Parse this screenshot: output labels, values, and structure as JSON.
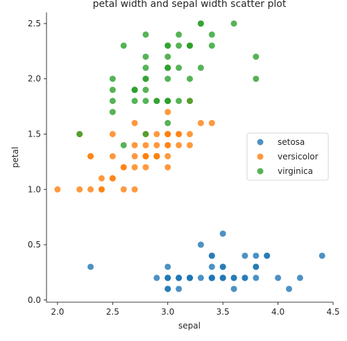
{
  "chart_data": {
    "type": "scatter",
    "title": "petal width and sepal width scatter plot",
    "xlabel": "sepal",
    "ylabel": "petal",
    "xlim": [
      1.9,
      4.5
    ],
    "ylim": [
      -0.02,
      2.6
    ],
    "xticks": [
      "2.0",
      "2.5",
      "3.0",
      "3.5",
      "4.0",
      "4.5"
    ],
    "yticks": [
      "0.0",
      "0.5",
      "1.0",
      "1.5",
      "2.0",
      "2.5"
    ],
    "grid": false,
    "legend_position": "right",
    "series": [
      {
        "name": "setosa",
        "color": "#1f77b4",
        "points": [
          [
            3.5,
            0.2
          ],
          [
            3.0,
            0.2
          ],
          [
            3.2,
            0.2
          ],
          [
            3.1,
            0.2
          ],
          [
            3.6,
            0.2
          ],
          [
            3.9,
            0.4
          ],
          [
            3.4,
            0.3
          ],
          [
            3.4,
            0.2
          ],
          [
            2.9,
            0.2
          ],
          [
            3.1,
            0.1
          ],
          [
            3.7,
            0.2
          ],
          [
            3.4,
            0.2
          ],
          [
            3.0,
            0.1
          ],
          [
            3.0,
            0.1
          ],
          [
            4.0,
            0.2
          ],
          [
            4.4,
            0.4
          ],
          [
            3.9,
            0.4
          ],
          [
            3.5,
            0.3
          ],
          [
            3.8,
            0.3
          ],
          [
            3.8,
            0.3
          ],
          [
            3.4,
            0.2
          ],
          [
            3.7,
            0.4
          ],
          [
            3.6,
            0.2
          ],
          [
            3.3,
            0.5
          ],
          [
            3.4,
            0.2
          ],
          [
            3.0,
            0.2
          ],
          [
            3.4,
            0.4
          ],
          [
            3.5,
            0.2
          ],
          [
            3.4,
            0.2
          ],
          [
            3.2,
            0.2
          ],
          [
            3.1,
            0.2
          ],
          [
            3.4,
            0.4
          ],
          [
            4.1,
            0.1
          ],
          [
            4.2,
            0.2
          ],
          [
            3.1,
            0.2
          ],
          [
            3.2,
            0.2
          ],
          [
            3.5,
            0.2
          ],
          [
            3.6,
            0.1
          ],
          [
            3.0,
            0.2
          ],
          [
            3.4,
            0.2
          ],
          [
            3.5,
            0.3
          ],
          [
            2.3,
            0.3
          ],
          [
            3.2,
            0.2
          ],
          [
            3.5,
            0.6
          ],
          [
            3.8,
            0.4
          ],
          [
            3.0,
            0.3
          ],
          [
            3.8,
            0.2
          ],
          [
            3.2,
            0.2
          ],
          [
            3.7,
            0.2
          ],
          [
            3.3,
            0.2
          ]
        ]
      },
      {
        "name": "versicolor",
        "color": "#ff7f0e",
        "points": [
          [
            3.2,
            1.4
          ],
          [
            3.2,
            1.5
          ],
          [
            3.1,
            1.5
          ],
          [
            2.3,
            1.3
          ],
          [
            2.8,
            1.5
          ],
          [
            2.8,
            1.3
          ],
          [
            3.3,
            1.6
          ],
          [
            2.4,
            1.0
          ],
          [
            2.9,
            1.3
          ],
          [
            2.7,
            1.4
          ],
          [
            2.0,
            1.0
          ],
          [
            3.0,
            1.5
          ],
          [
            2.2,
            1.0
          ],
          [
            2.9,
            1.4
          ],
          [
            2.9,
            1.3
          ],
          [
            3.1,
            1.4
          ],
          [
            3.0,
            1.5
          ],
          [
            2.7,
            1.0
          ],
          [
            2.2,
            1.5
          ],
          [
            2.5,
            1.1
          ],
          [
            3.2,
            1.8
          ],
          [
            2.8,
            1.3
          ],
          [
            2.5,
            1.5
          ],
          [
            2.8,
            1.2
          ],
          [
            2.9,
            1.3
          ],
          [
            3.0,
            1.4
          ],
          [
            2.8,
            1.4
          ],
          [
            3.0,
            1.7
          ],
          [
            2.9,
            1.5
          ],
          [
            2.6,
            1.0
          ],
          [
            2.4,
            1.1
          ],
          [
            2.4,
            1.0
          ],
          [
            2.7,
            1.2
          ],
          [
            2.7,
            1.6
          ],
          [
            3.0,
            1.5
          ],
          [
            3.4,
            1.6
          ],
          [
            3.1,
            1.5
          ],
          [
            2.3,
            1.3
          ],
          [
            3.0,
            1.3
          ],
          [
            2.5,
            1.3
          ],
          [
            2.6,
            1.2
          ],
          [
            3.0,
            1.4
          ],
          [
            2.6,
            1.2
          ],
          [
            2.3,
            1.0
          ],
          [
            2.7,
            1.3
          ],
          [
            3.0,
            1.2
          ],
          [
            2.9,
            1.3
          ],
          [
            2.9,
            1.3
          ],
          [
            2.5,
            1.1
          ],
          [
            2.8,
            1.3
          ]
        ]
      },
      {
        "name": "virginica",
        "color": "#2ca02c",
        "points": [
          [
            3.3,
            2.5
          ],
          [
            2.7,
            1.9
          ],
          [
            3.0,
            2.1
          ],
          [
            2.9,
            1.8
          ],
          [
            3.0,
            2.2
          ],
          [
            3.0,
            2.1
          ],
          [
            2.5,
            1.7
          ],
          [
            2.9,
            1.8
          ],
          [
            2.5,
            1.8
          ],
          [
            3.6,
            2.5
          ],
          [
            3.2,
            2.0
          ],
          [
            2.7,
            1.9
          ],
          [
            3.0,
            2.1
          ],
          [
            2.5,
            2.0
          ],
          [
            2.8,
            2.4
          ],
          [
            3.2,
            2.3
          ],
          [
            3.0,
            1.8
          ],
          [
            3.8,
            2.2
          ],
          [
            2.6,
            2.3
          ],
          [
            2.2,
            1.5
          ],
          [
            3.2,
            2.3
          ],
          [
            2.8,
            2.0
          ],
          [
            2.8,
            2.0
          ],
          [
            2.7,
            1.8
          ],
          [
            3.3,
            2.1
          ],
          [
            3.2,
            1.8
          ],
          [
            2.8,
            1.8
          ],
          [
            3.0,
            1.8
          ],
          [
            2.8,
            2.1
          ],
          [
            3.0,
            1.6
          ],
          [
            2.8,
            1.9
          ],
          [
            3.8,
            2.0
          ],
          [
            2.8,
            2.2
          ],
          [
            2.8,
            1.5
          ],
          [
            2.6,
            1.4
          ],
          [
            3.0,
            2.3
          ],
          [
            3.4,
            2.4
          ],
          [
            3.1,
            1.8
          ],
          [
            3.0,
            1.8
          ],
          [
            3.1,
            2.1
          ],
          [
            3.1,
            2.4
          ],
          [
            3.1,
            2.3
          ],
          [
            2.7,
            1.9
          ],
          [
            3.2,
            2.3
          ],
          [
            3.3,
            2.5
          ],
          [
            3.0,
            2.3
          ],
          [
            2.5,
            1.9
          ],
          [
            3.0,
            2.0
          ],
          [
            3.4,
            2.3
          ],
          [
            3.0,
            1.8
          ]
        ]
      }
    ]
  }
}
